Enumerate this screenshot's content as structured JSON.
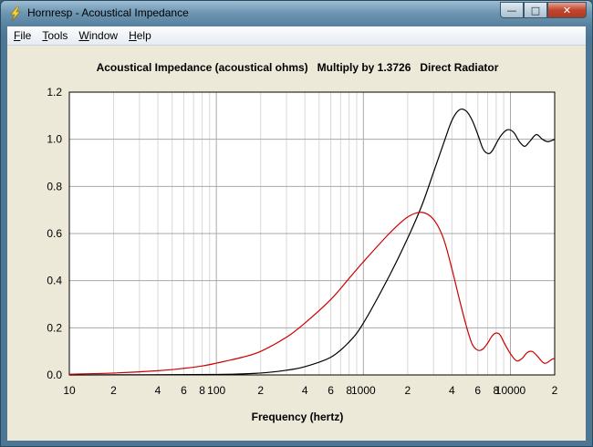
{
  "window": {
    "title": "Hornresp - Acoustical Impedance",
    "icon": "lightning-bolt-icon"
  },
  "menu": [
    {
      "hot": "F",
      "rest": "ile"
    },
    {
      "hot": "T",
      "rest": "ools"
    },
    {
      "hot": "W",
      "rest": "indow"
    },
    {
      "hot": "H",
      "rest": "elp"
    }
  ],
  "chart_data": {
    "type": "line",
    "title": "Acoustical Impedance (acoustical ohms)   Multiply by 1.3726   Direct Radiator",
    "xlabel": "Frequency (hertz)",
    "ylabel": "",
    "x_scale": "log",
    "xlim": [
      10,
      20000
    ],
    "ylim": [
      0,
      1.2
    ],
    "grid": true,
    "y_ticks": [
      "0.0",
      "0.2",
      "0.4",
      "0.6",
      "0.8",
      "1.0",
      "1.2"
    ],
    "x_tick_labels": [
      {
        "x": 10,
        "label": "10"
      },
      {
        "x": 20,
        "label": "2"
      },
      {
        "x": 40,
        "label": "4"
      },
      {
        "x": 60,
        "label": "6"
      },
      {
        "x": 80,
        "label": "8"
      },
      {
        "x": 100,
        "label": "100"
      },
      {
        "x": 200,
        "label": "2"
      },
      {
        "x": 400,
        "label": "4"
      },
      {
        "x": 600,
        "label": "6"
      },
      {
        "x": 800,
        "label": "8"
      },
      {
        "x": 1000,
        "label": "1000"
      },
      {
        "x": 2000,
        "label": "2"
      },
      {
        "x": 4000,
        "label": "4"
      },
      {
        "x": 6000,
        "label": "6"
      },
      {
        "x": 8000,
        "label": "8"
      },
      {
        "x": 10000,
        "label": "10000"
      },
      {
        "x": 20000,
        "label": "2"
      }
    ],
    "series": [
      {
        "color": "#000000",
        "points": [
          [
            10,
            0
          ],
          [
            100,
            0.002
          ],
          [
            200,
            0.008
          ],
          [
            300,
            0.02
          ],
          [
            400,
            0.035
          ],
          [
            600,
            0.075
          ],
          [
            800,
            0.14
          ],
          [
            1000,
            0.22
          ],
          [
            1500,
            0.42
          ],
          [
            2000,
            0.58
          ],
          [
            2500,
            0.72
          ],
          [
            3000,
            0.86
          ],
          [
            3500,
            0.98
          ],
          [
            4000,
            1.08
          ],
          [
            4500,
            1.125
          ],
          [
            5000,
            1.12
          ],
          [
            5500,
            1.08
          ],
          [
            6000,
            1.02
          ],
          [
            6500,
            0.96
          ],
          [
            7000,
            0.94
          ],
          [
            7500,
            0.95
          ],
          [
            8500,
            1.01
          ],
          [
            9500,
            1.04
          ],
          [
            10500,
            1.03
          ],
          [
            11500,
            0.99
          ],
          [
            12500,
            0.97
          ],
          [
            13500,
            0.99
          ],
          [
            15000,
            1.02
          ],
          [
            16500,
            1.0
          ],
          [
            18000,
            0.99
          ],
          [
            20000,
            1.0
          ]
        ]
      },
      {
        "color": "#cc0000",
        "points": [
          [
            10,
            0.003
          ],
          [
            20,
            0.008
          ],
          [
            40,
            0.018
          ],
          [
            60,
            0.028
          ],
          [
            80,
            0.038
          ],
          [
            100,
            0.05
          ],
          [
            150,
            0.075
          ],
          [
            200,
            0.1
          ],
          [
            300,
            0.16
          ],
          [
            400,
            0.22
          ],
          [
            600,
            0.32
          ],
          [
            800,
            0.41
          ],
          [
            1000,
            0.48
          ],
          [
            1500,
            0.6
          ],
          [
            2000,
            0.67
          ],
          [
            2500,
            0.69
          ],
          [
            3000,
            0.66
          ],
          [
            3500,
            0.58
          ],
          [
            4000,
            0.45
          ],
          [
            4500,
            0.32
          ],
          [
            5000,
            0.21
          ],
          [
            5500,
            0.13
          ],
          [
            6000,
            0.105
          ],
          [
            6500,
            0.11
          ],
          [
            7000,
            0.135
          ],
          [
            7500,
            0.165
          ],
          [
            8000,
            0.178
          ],
          [
            8500,
            0.17
          ],
          [
            9000,
            0.14
          ],
          [
            10000,
            0.09
          ],
          [
            11000,
            0.06
          ],
          [
            12000,
            0.07
          ],
          [
            13000,
            0.095
          ],
          [
            14000,
            0.1
          ],
          [
            15000,
            0.085
          ],
          [
            16500,
            0.055
          ],
          [
            17500,
            0.05
          ],
          [
            19000,
            0.065
          ],
          [
            20000,
            0.07
          ]
        ]
      }
    ]
  }
}
